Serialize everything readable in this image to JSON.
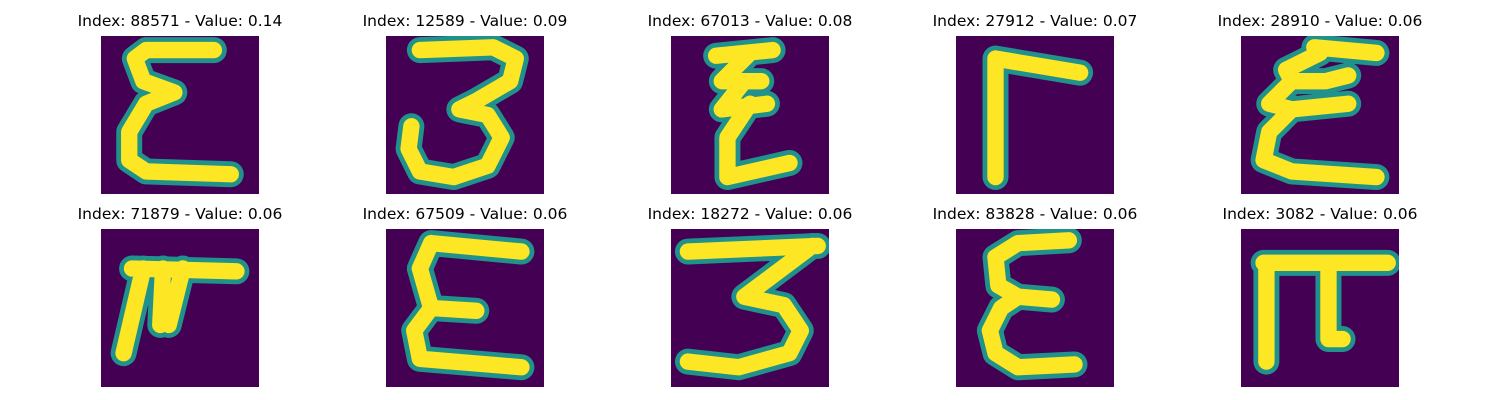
{
  "chart_data": {
    "type": "heatmap",
    "layout": {
      "rows": 2,
      "cols": 5
    },
    "axes_visible": false,
    "colormap": {
      "name": "viridis",
      "low": "#440154",
      "mid": "#21918c",
      "high": "#fde725"
    },
    "panels": [
      {
        "title": "Index: 88571 - Value: 0.14",
        "index": 88571,
        "value": 0.14,
        "glyph": "epsilon"
      },
      {
        "title": "Index: 12589 - Value: 0.09",
        "index": 12589,
        "value": 0.09,
        "glyph": "three"
      },
      {
        "title": "Index: 67013 - Value: 0.08",
        "index": 67013,
        "value": 0.08,
        "glyph": "zigzag"
      },
      {
        "title": "Index: 27912 - Value: 0.07",
        "index": 27912,
        "value": 0.07,
        "glyph": "gamma"
      },
      {
        "title": "Index: 28910 - Value: 0.06",
        "index": 28910,
        "value": 0.06,
        "glyph": "epsilon-loop"
      },
      {
        "title": "Index: 71879 - Value: 0.06",
        "index": 71879,
        "value": 0.06,
        "glyph": "pi-slant"
      },
      {
        "title": "Index: 67509 - Value: 0.06",
        "index": 67509,
        "value": 0.06,
        "glyph": "epsilon-wide"
      },
      {
        "title": "Index: 18272 - Value: 0.06",
        "index": 18272,
        "value": 0.06,
        "glyph": "three-flat"
      },
      {
        "title": "Index: 83828 - Value: 0.06",
        "index": 83828,
        "value": 0.06,
        "glyph": "epsilon-round"
      },
      {
        "title": "Index: 3082 - Value: 0.06",
        "index": 3082,
        "value": 0.06,
        "glyph": "pi"
      }
    ]
  }
}
